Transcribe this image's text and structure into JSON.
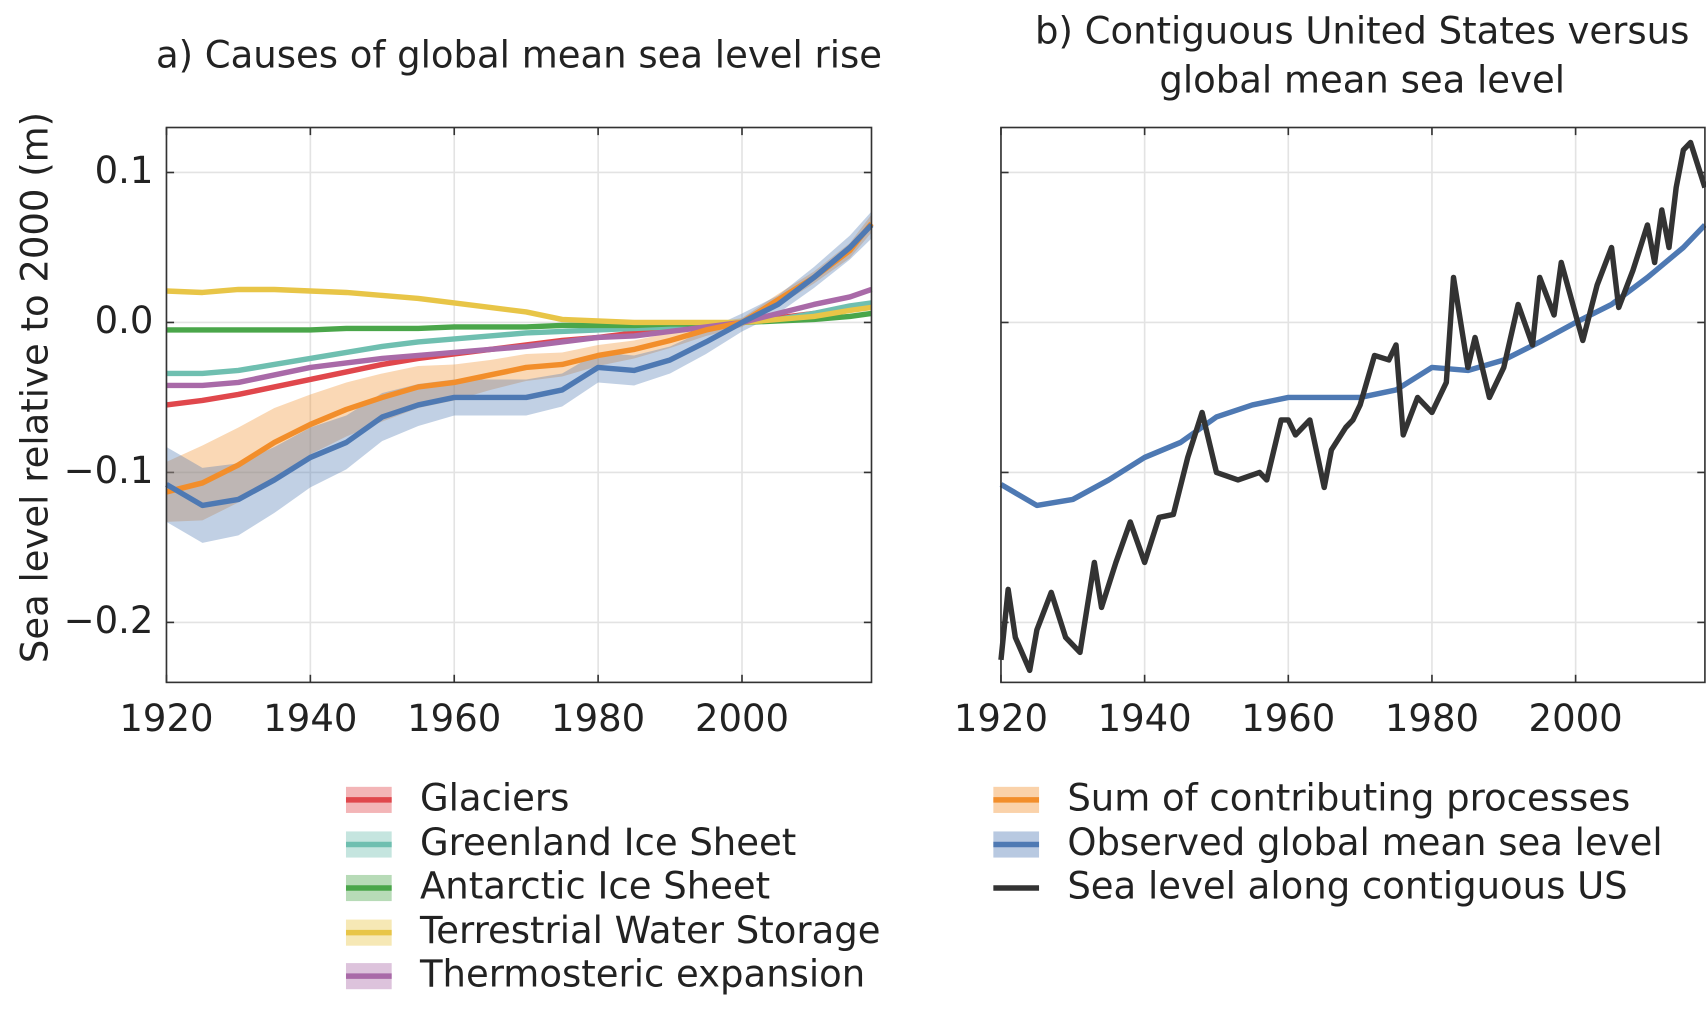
{
  "chart_data": [
    {
      "type": "line",
      "title": "a) Causes of global mean sea level rise",
      "ylabel": "Sea level relative to 2000 (m)",
      "x": [
        1920,
        1925,
        1930,
        1935,
        1940,
        1945,
        1950,
        1955,
        1960,
        1965,
        1970,
        1975,
        1980,
        1985,
        1990,
        1995,
        2000,
        2005,
        2010,
        2015,
        2018
      ],
      "xlim": [
        1920,
        2018
      ],
      "xticks": [
        1920,
        1940,
        1960,
        1980,
        2000
      ],
      "ylim": [
        -0.24,
        0.13
      ],
      "yticks": [
        {
          "value": -0.2,
          "label": "−0.2"
        },
        {
          "value": -0.1,
          "label": "−0.1"
        },
        {
          "value": 0,
          "label": "0.0"
        },
        0.1
      ],
      "grid": true,
      "series": [
        {
          "name": "Glaciers",
          "color": "#e0474c",
          "values": [
            -0.055,
            -0.052,
            -0.048,
            -0.043,
            -0.038,
            -0.033,
            -0.028,
            -0.024,
            -0.021,
            -0.018,
            -0.015,
            -0.012,
            -0.01,
            -0.007,
            -0.005,
            -0.002,
            0,
            0.003,
            0.006,
            0.009,
            0.011
          ]
        },
        {
          "name": "Greenland Ice Sheet",
          "color": "#6fbfb0",
          "values": [
            -0.034,
            -0.034,
            -0.032,
            -0.028,
            -0.024,
            -0.02,
            -0.016,
            -0.013,
            -0.011,
            -0.009,
            -0.007,
            -0.006,
            -0.005,
            -0.004,
            -0.003,
            -0.002,
            0,
            0.002,
            0.006,
            0.011,
            0.013
          ]
        },
        {
          "name": "Antarctic Ice Sheet",
          "color": "#4aa64a",
          "values": [
            -0.005,
            -0.005,
            -0.005,
            -0.005,
            -0.005,
            -0.004,
            -0.004,
            -0.004,
            -0.003,
            -0.003,
            -0.003,
            -0.002,
            -0.002,
            -0.002,
            -0.001,
            -0.001,
            0,
            0.001,
            0.002,
            0.004,
            0.006
          ]
        },
        {
          "name": "Terrestrial Water Storage",
          "color": "#e8c547",
          "values": [
            0.021,
            0.02,
            0.022,
            0.022,
            0.021,
            0.02,
            0.018,
            0.016,
            0.013,
            0.01,
            0.007,
            0.002,
            0.001,
            0.0,
            0.0,
            0.0,
            0,
            0.002,
            0.004,
            0.008,
            0.01
          ]
        },
        {
          "name": "Thermosteric expansion",
          "color": "#a96aa8",
          "values": [
            -0.042,
            -0.042,
            -0.04,
            -0.035,
            -0.03,
            -0.027,
            -0.024,
            -0.022,
            -0.02,
            -0.018,
            -0.016,
            -0.013,
            -0.01,
            -0.009,
            -0.006,
            -0.003,
            0,
            0.006,
            0.012,
            0.017,
            0.022
          ]
        },
        {
          "name": "Sum of contributing processes",
          "color": "#f28e2b",
          "values": [
            -0.113,
            -0.107,
            -0.095,
            -0.08,
            -0.068,
            -0.058,
            -0.05,
            -0.043,
            -0.04,
            -0.035,
            -0.03,
            -0.028,
            -0.022,
            -0.018,
            -0.012,
            -0.005,
            0,
            0.015,
            0.03,
            0.048,
            0.066
          ],
          "lower": [
            -0.133,
            -0.132,
            -0.12,
            -0.103,
            -0.088,
            -0.076,
            -0.066,
            -0.057,
            -0.052,
            -0.045,
            -0.039,
            -0.036,
            -0.029,
            -0.024,
            -0.017,
            -0.009,
            -0.003,
            0.011,
            0.026,
            0.043,
            0.06
          ],
          "upper": [
            -0.093,
            -0.082,
            -0.07,
            -0.057,
            -0.048,
            -0.04,
            -0.034,
            -0.029,
            -0.028,
            -0.025,
            -0.021,
            -0.02,
            -0.015,
            -0.012,
            -0.007,
            -0.001,
            0.003,
            0.019,
            0.034,
            0.053,
            0.072
          ]
        },
        {
          "name": "Observed global mean sea level",
          "color": "#4e79b3",
          "values": [
            -0.108,
            -0.122,
            -0.118,
            -0.105,
            -0.09,
            -0.08,
            -0.063,
            -0.055,
            -0.05,
            -0.05,
            -0.05,
            -0.045,
            -0.03,
            -0.032,
            -0.025,
            -0.013,
            0,
            0.012,
            0.03,
            0.05,
            0.065
          ],
          "lower": [
            -0.133,
            -0.147,
            -0.142,
            -0.127,
            -0.11,
            -0.098,
            -0.079,
            -0.069,
            -0.062,
            -0.062,
            -0.062,
            -0.056,
            -0.04,
            -0.042,
            -0.034,
            -0.021,
            -0.006,
            0.006,
            0.023,
            0.042,
            0.056
          ],
          "upper": [
            -0.083,
            -0.097,
            -0.094,
            -0.083,
            -0.07,
            -0.062,
            -0.047,
            -0.041,
            -0.038,
            -0.038,
            -0.038,
            -0.034,
            -0.02,
            -0.022,
            -0.016,
            -0.005,
            0.006,
            0.018,
            0.037,
            0.058,
            0.074
          ]
        }
      ]
    },
    {
      "type": "line",
      "title": [
        "b) Contiguous United States versus",
        "global mean sea level"
      ],
      "x": [
        1920,
        1925,
        1930,
        1935,
        1940,
        1945,
        1950,
        1955,
        1960,
        1965,
        1970,
        1975,
        1980,
        1985,
        1990,
        1995,
        2000,
        2005,
        2010,
        2015,
        2018
      ],
      "xlim": [
        1920,
        2018
      ],
      "xticks": [
        1920,
        1940,
        1960,
        1980,
        2000
      ],
      "ylim": [
        -0.24,
        0.13
      ],
      "yticks": [
        -0.2,
        -0.1,
        0,
        0.1
      ],
      "show_ytick_labels": false,
      "grid": true,
      "series": [
        {
          "name": "Observed global mean sea level",
          "color": "#4e79b3",
          "values": [
            -0.108,
            -0.122,
            -0.118,
            -0.105,
            -0.09,
            -0.08,
            -0.063,
            -0.055,
            -0.05,
            -0.05,
            -0.05,
            -0.045,
            -0.03,
            -0.032,
            -0.025,
            -0.013,
            0,
            0.012,
            0.03,
            0.05,
            0.065
          ]
        },
        {
          "name": "Sea level along contiguous US",
          "color": "#333333",
          "x": [
            1920,
            1921,
            1922,
            1924,
            1925,
            1927,
            1929,
            1931,
            1933,
            1934,
            1936,
            1938,
            1940,
            1942,
            1944,
            1946,
            1948,
            1950,
            1953,
            1956,
            1957,
            1959,
            1960,
            1961,
            1963,
            1965,
            1966,
            1968,
            1969,
            1970,
            1972,
            1974,
            1975,
            1976,
            1978,
            1980,
            1982,
            1983,
            1985,
            1986,
            1988,
            1990,
            1992,
            1994,
            1995,
            1997,
            1998,
            2001,
            2003,
            2005,
            2006,
            2008,
            2010,
            2011,
            2012,
            2013,
            2014,
            2015,
            2016,
            2018
          ],
          "values": [
            -0.225,
            -0.178,
            -0.21,
            -0.232,
            -0.205,
            -0.18,
            -0.21,
            -0.22,
            -0.16,
            -0.19,
            -0.16,
            -0.133,
            -0.16,
            -0.13,
            -0.128,
            -0.09,
            -0.06,
            -0.1,
            -0.105,
            -0.1,
            -0.105,
            -0.065,
            -0.065,
            -0.075,
            -0.065,
            -0.11,
            -0.085,
            -0.07,
            -0.065,
            -0.055,
            -0.022,
            -0.025,
            -0.015,
            -0.075,
            -0.05,
            -0.06,
            -0.04,
            0.03,
            -0.03,
            -0.01,
            -0.05,
            -0.03,
            0.012,
            -0.015,
            0.03,
            0.005,
            0.04,
            -0.012,
            0.025,
            0.05,
            0.01,
            0.035,
            0.065,
            0.04,
            0.075,
            0.05,
            0.09,
            0.115,
            0.12,
            0.09
          ]
        }
      ]
    }
  ]
}
